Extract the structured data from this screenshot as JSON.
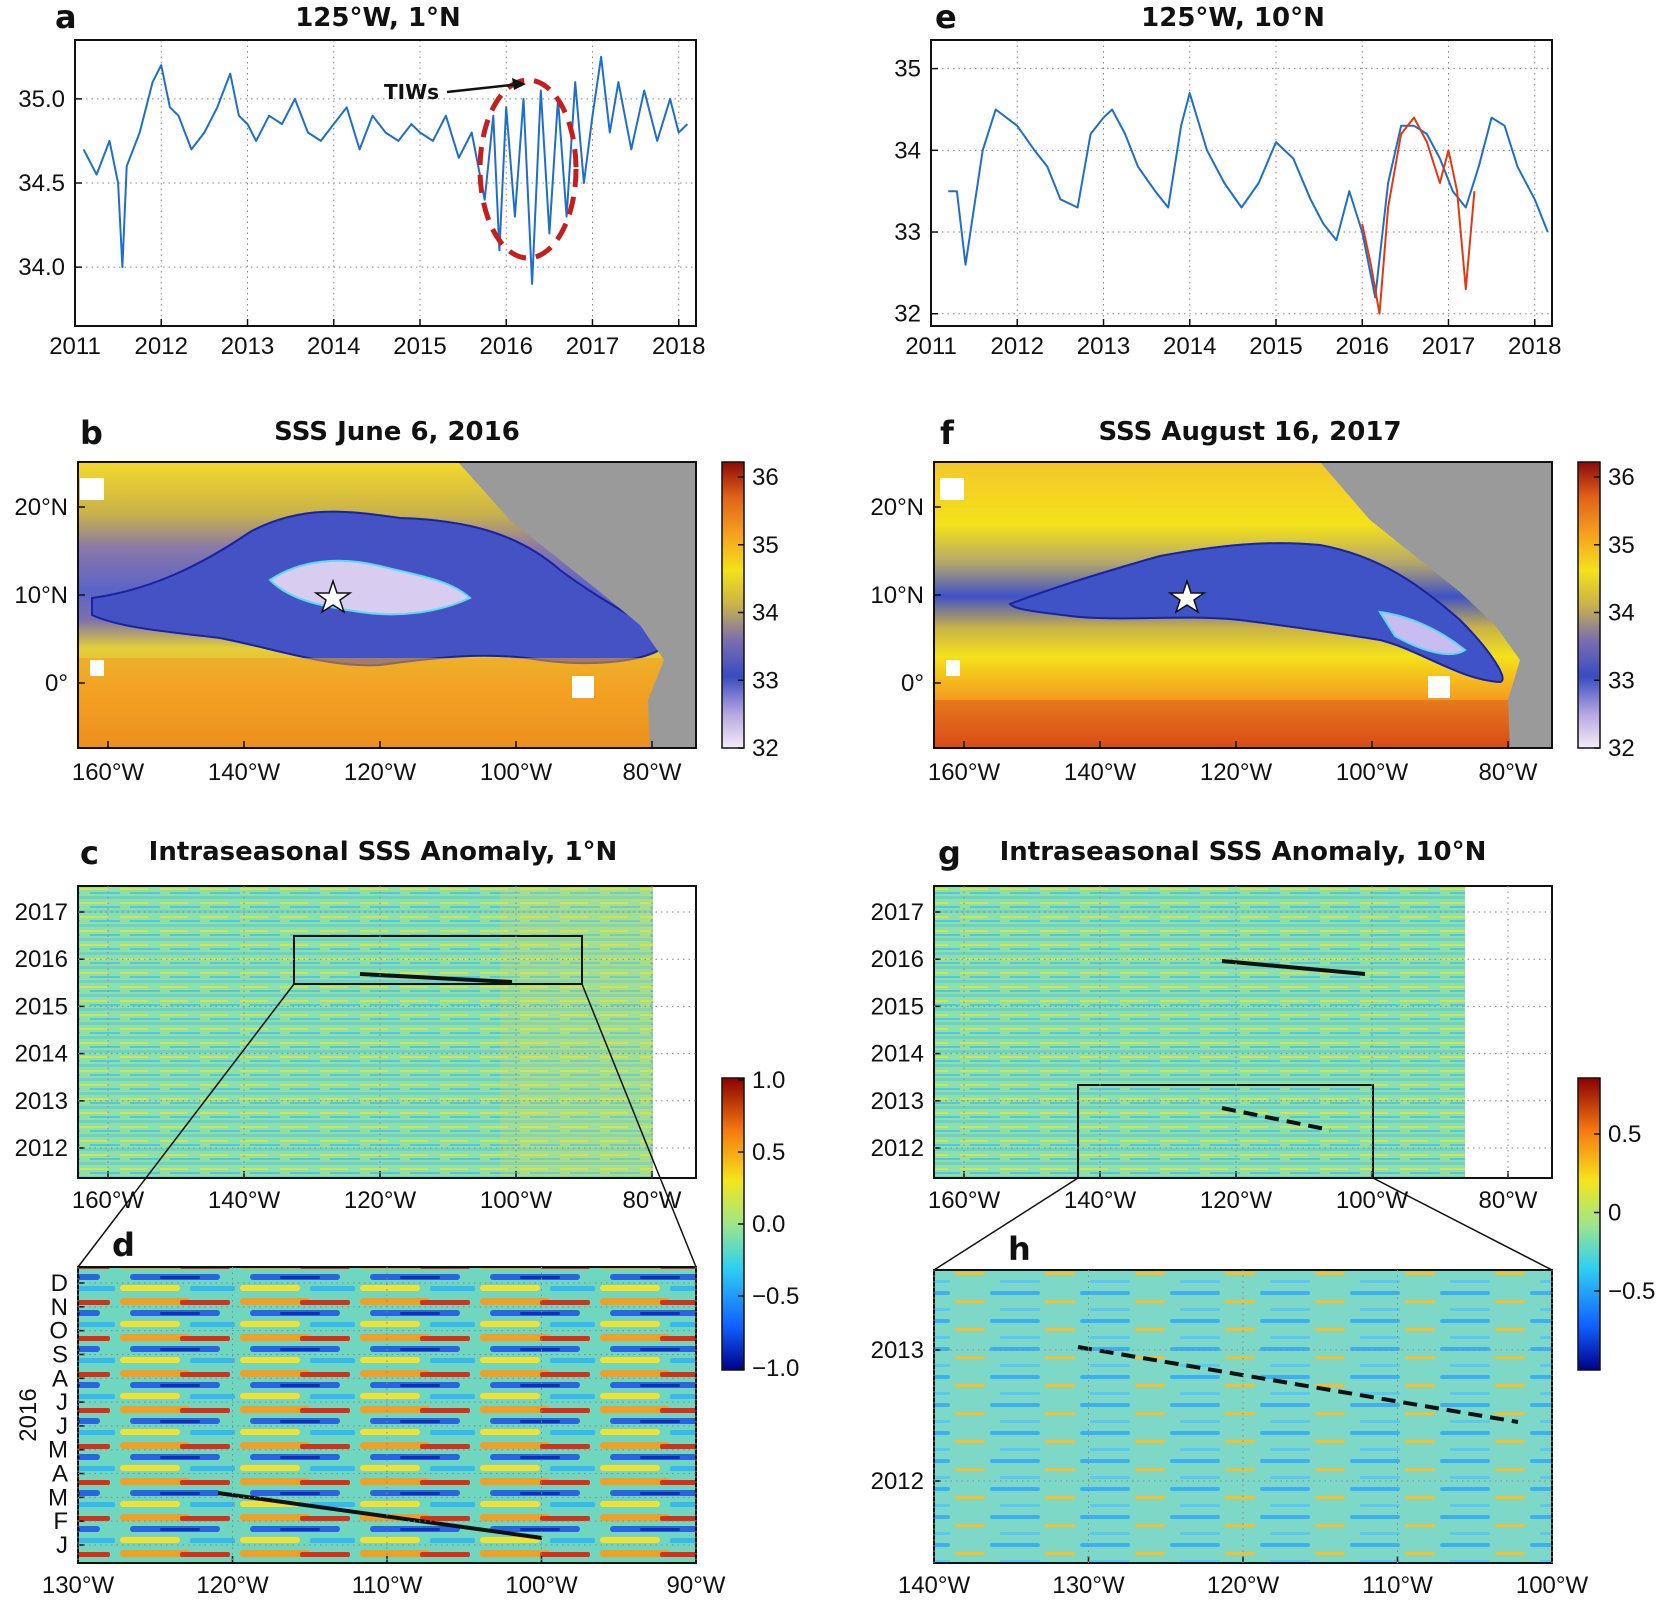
{
  "chart_data": [
    {
      "panel": "a",
      "type": "line",
      "title": "125°W, 1°N",
      "xticks": [
        "2011",
        "2012",
        "2013",
        "2014",
        "2015",
        "2016",
        "2017",
        "2018"
      ],
      "xlim": [
        2011.0,
        2018.2
      ],
      "yticks": [
        "34.0",
        "34.5",
        "35.0"
      ],
      "ylim": [
        33.65,
        35.35
      ],
      "annotation": "TIWs",
      "series": [
        {
          "color": "#1f6fc8",
          "x": [
            2011.1,
            2011.25,
            2011.4,
            2011.5,
            2011.55,
            2011.6,
            2011.75,
            2011.9,
            2012.0,
            2012.1,
            2012.2,
            2012.35,
            2012.5,
            2012.65,
            2012.8,
            2012.9,
            2013.0,
            2013.1,
            2013.25,
            2013.4,
            2013.55,
            2013.7,
            2013.85,
            2014.0,
            2014.15,
            2014.3,
            2014.45,
            2014.6,
            2014.75,
            2014.9,
            2015.0,
            2015.15,
            2015.3,
            2015.45,
            2015.6,
            2015.75,
            2015.85,
            2015.92,
            2016.0,
            2016.1,
            2016.2,
            2016.3,
            2016.4,
            2016.5,
            2016.6,
            2016.7,
            2016.8,
            2016.9,
            2017.0,
            2017.1,
            2017.2,
            2017.3,
            2017.45,
            2017.6,
            2017.75,
            2017.9,
            2018.0,
            2018.1
          ],
          "y": [
            34.7,
            34.55,
            34.75,
            34.5,
            34.0,
            34.6,
            34.8,
            35.1,
            35.2,
            34.95,
            34.9,
            34.7,
            34.8,
            34.95,
            35.15,
            34.9,
            34.85,
            34.75,
            34.9,
            34.85,
            35.0,
            34.8,
            34.75,
            34.85,
            34.95,
            34.7,
            34.9,
            34.8,
            34.75,
            34.85,
            34.8,
            34.75,
            34.9,
            34.65,
            34.8,
            34.4,
            34.9,
            34.1,
            34.95,
            34.3,
            35.0,
            33.9,
            35.05,
            34.2,
            35.0,
            34.3,
            35.1,
            34.5,
            34.9,
            35.25,
            34.8,
            35.1,
            34.7,
            35.05,
            34.75,
            35.0,
            34.8,
            34.85
          ]
        }
      ]
    },
    {
      "panel": "e",
      "type": "line",
      "title": "125°W, 10°N",
      "xticks": [
        "2011",
        "2012",
        "2013",
        "2014",
        "2015",
        "2016",
        "2017",
        "2018"
      ],
      "xlim": [
        2011.0,
        2018.2
      ],
      "yticks": [
        "32",
        "33",
        "34",
        "35"
      ],
      "ylim": [
        31.85,
        35.35
      ],
      "series": [
        {
          "color": "#1f6fc8",
          "x": [
            2011.2,
            2011.3,
            2011.4,
            2011.6,
            2011.75,
            2012.0,
            2012.2,
            2012.35,
            2012.5,
            2012.7,
            2012.85,
            2013.0,
            2013.1,
            2013.25,
            2013.4,
            2013.6,
            2013.75,
            2013.9,
            2014.0,
            2014.2,
            2014.4,
            2014.6,
            2014.8,
            2015.0,
            2015.2,
            2015.4,
            2015.55,
            2015.7,
            2015.85,
            2016.0,
            2016.15,
            2016.3,
            2016.45,
            2016.6,
            2016.75,
            2016.9,
            2017.05,
            2017.2,
            2017.35,
            2017.5,
            2017.65,
            2017.8,
            2018.0,
            2018.15
          ],
          "y": [
            33.5,
            33.5,
            32.6,
            34.0,
            34.5,
            34.3,
            34.0,
            33.8,
            33.4,
            33.3,
            34.2,
            34.4,
            34.5,
            34.2,
            33.8,
            33.5,
            33.3,
            34.3,
            34.7,
            34.0,
            33.6,
            33.3,
            33.6,
            34.1,
            33.9,
            33.4,
            33.1,
            32.9,
            33.5,
            33.0,
            32.2,
            33.6,
            34.3,
            34.3,
            34.2,
            33.9,
            33.5,
            33.3,
            33.8,
            34.4,
            34.3,
            33.8,
            33.4,
            33.0
          ]
        },
        {
          "color": "#e03a14",
          "x": [
            2016.0,
            2016.1,
            2016.2,
            2016.3,
            2016.45,
            2016.6,
            2016.75,
            2016.9,
            2017.0,
            2017.1,
            2017.2,
            2017.3
          ],
          "y": [
            33.1,
            32.6,
            32.0,
            33.3,
            34.2,
            34.4,
            34.1,
            33.6,
            34.0,
            33.5,
            32.3,
            33.5
          ]
        }
      ]
    },
    {
      "panel": "b",
      "type": "heatmap",
      "title": "SSS June 6, 2016",
      "xticks": [
        "160°W",
        "140°W",
        "120°W",
        "100°W",
        "80°W"
      ],
      "yticks": [
        "20°N",
        "10°N",
        "0°"
      ],
      "colorbar": {
        "ticks": [
          "32",
          "33",
          "34",
          "35",
          "36"
        ],
        "range": [
          32,
          36
        ]
      },
      "marker": "125°W, 10°N star"
    },
    {
      "panel": "f",
      "type": "heatmap",
      "title": "SSS August 16, 2017",
      "xticks": [
        "160°W",
        "140°W",
        "120°W",
        "100°W",
        "80°W"
      ],
      "yticks": [
        "20°N",
        "10°N",
        "0°"
      ],
      "colorbar": {
        "ticks": [
          "32",
          "33",
          "34",
          "35",
          "36"
        ],
        "range": [
          32,
          36
        ]
      },
      "marker": "125°W, 10°N star"
    },
    {
      "panel": "c",
      "type": "heatmap",
      "title": "Intraseasonal SSS Anomaly, 1°N",
      "xticks": [
        "160°W",
        "140°W",
        "120°W",
        "100°W",
        "80°W"
      ],
      "yticks": [
        "2017",
        "2016",
        "2015",
        "2014",
        "2013",
        "2012"
      ],
      "colorbar": {
        "ticks": [
          "1.0",
          "0.5",
          "0.0",
          "−0.5",
          "−1.0"
        ],
        "range": [
          -1.0,
          1.0
        ]
      }
    },
    {
      "panel": "d",
      "type": "heatmap",
      "title": "",
      "ylabel": "2016",
      "xticks": [
        "130°W",
        "120°W",
        "110°W",
        "100°W",
        "90°W"
      ],
      "yticks": [
        "D",
        "N",
        "O",
        "S",
        "A",
        "J",
        "J",
        "M",
        "A",
        "M",
        "F",
        "J"
      ]
    },
    {
      "panel": "g",
      "type": "heatmap",
      "title": "Intraseasonal SSS Anomaly, 10°N",
      "xticks": [
        "160°W",
        "140°W",
        "120°W",
        "100°W",
        "80°W"
      ],
      "yticks": [
        "2017",
        "2016",
        "2015",
        "2014",
        "2013",
        "2012"
      ],
      "colorbar": {
        "ticks": [
          "0.5",
          "0",
          "−0.5"
        ],
        "range": [
          -0.8,
          0.8
        ]
      }
    },
    {
      "panel": "h",
      "type": "heatmap",
      "title": "",
      "xticks": [
        "140°W",
        "130°W",
        "120°W",
        "110°W",
        "100°W"
      ],
      "yticks": [
        "2013",
        "2012"
      ]
    }
  ],
  "colors": {
    "sss_scale": [
      "#f3ecf8",
      "#b6a6e0",
      "#3a4cc0",
      "#8a78a8",
      "#c9b24a",
      "#f4e21a",
      "#f5a020",
      "#e06018",
      "#8b0a0a"
    ],
    "anom_scale": [
      "#00008b",
      "#1060ff",
      "#30d0f0",
      "#9fe68a",
      "#f5e51a",
      "#f57a10",
      "#c00000",
      "#700000"
    ],
    "land": "#9a9a9a",
    "line_blue": "#1f6fc8",
    "line_red": "#e03a14",
    "tiw_ellipse": "#c41e1e"
  }
}
